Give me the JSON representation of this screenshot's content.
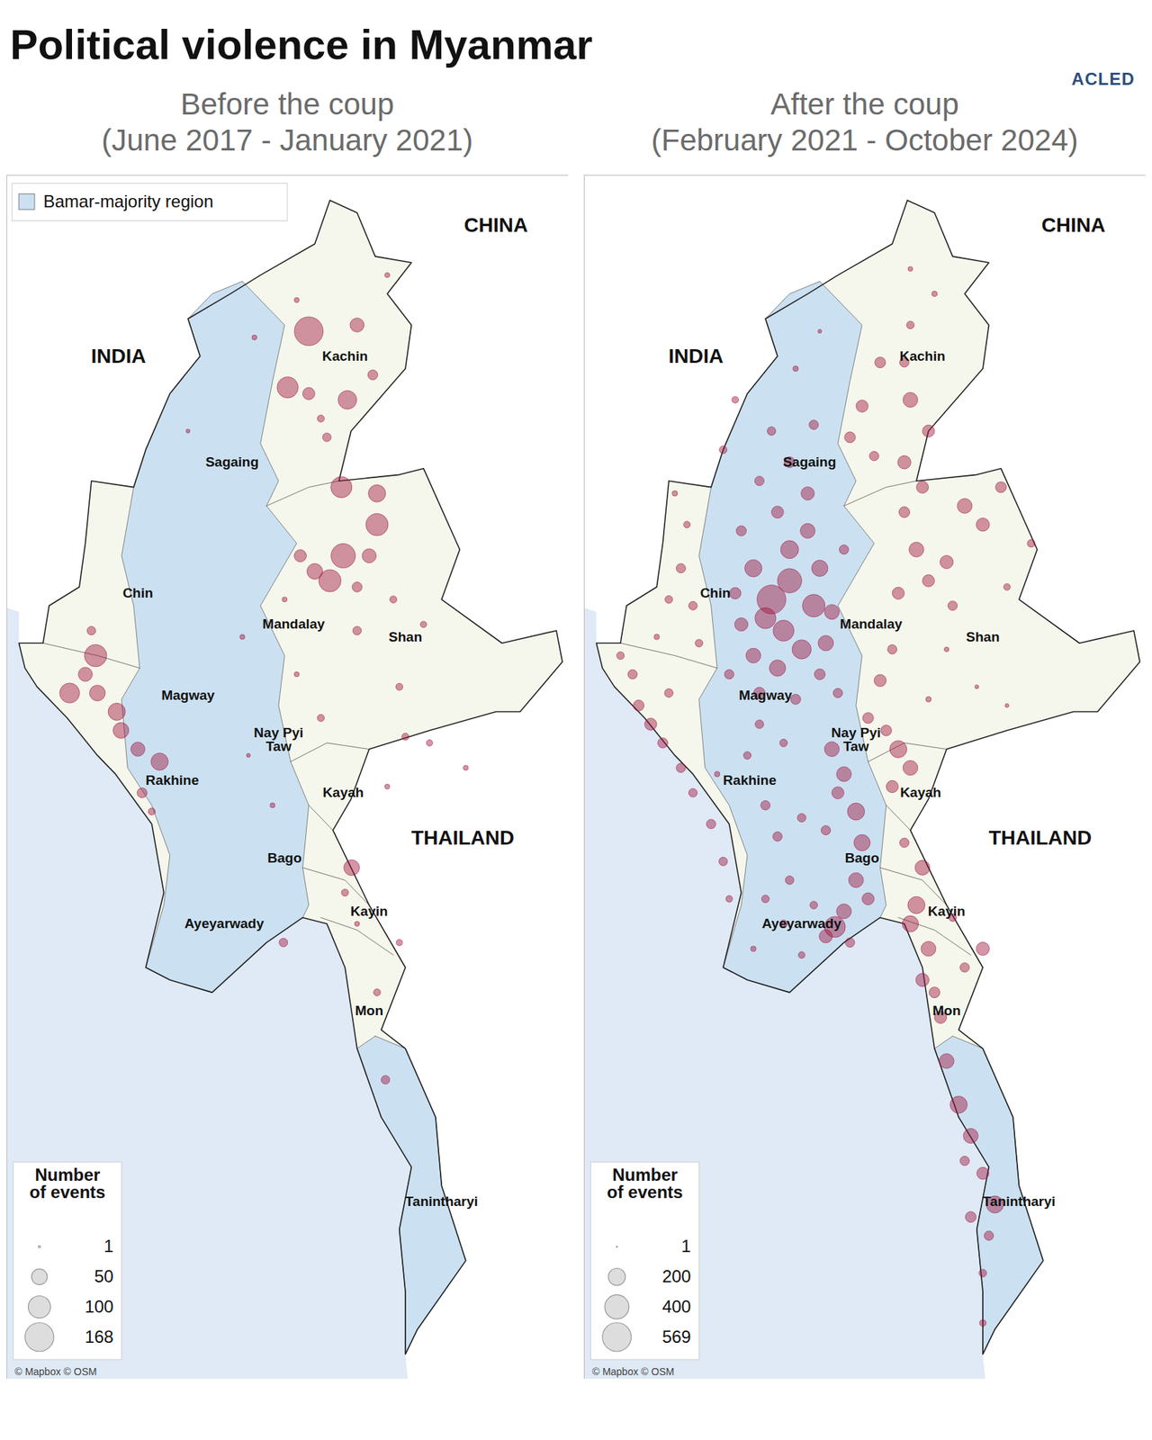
{
  "title": "Political violence in Myanmar",
  "logo": "ACLED",
  "region_labels": [
    "Kachin",
    "Sagaing",
    "Chin",
    "Mandalay",
    "Shan",
    "Magway",
    "Nay Pyi\nTaw",
    "Rakhine",
    "Kayah",
    "Bago",
    "Kayin",
    "Ayeyarwady",
    "Mon",
    "Tanintharyi"
  ],
  "country_labels": [
    "INDIA",
    "CHINA",
    "THAILAND"
  ],
  "chart_data": [
    {
      "type": "bubble_map",
      "title": "Before the coup",
      "subtitle": "(June 2017 - January 2021)",
      "area_legend": "Bamar-majority region",
      "source": "© Mapbox © OSM",
      "color": "#a0153e",
      "xlim": [
        92.0,
        101.3
      ],
      "ylim": [
        9.6,
        28.9
      ],
      "tick_labels": false,
      "size_legend": {
        "title": "Number\nof events",
        "values": [
          1,
          50,
          100,
          168
        ]
      },
      "events": [
        {
          "lon": 97.0,
          "lat": 26.4,
          "count": 168
        },
        {
          "lon": 97.8,
          "lat": 26.5,
          "count": 40
        },
        {
          "lon": 96.65,
          "lat": 25.5,
          "count": 90
        },
        {
          "lon": 97.64,
          "lat": 25.3,
          "count": 70
        },
        {
          "lon": 97.0,
          "lat": 25.4,
          "count": 30
        },
        {
          "lon": 97.54,
          "lat": 23.9,
          "count": 90
        },
        {
          "lon": 98.13,
          "lat": 23.8,
          "count": 60
        },
        {
          "lon": 98.13,
          "lat": 23.3,
          "count": 100
        },
        {
          "lon": 98.06,
          "lat": 25.7,
          "count": 20
        },
        {
          "lon": 97.3,
          "lat": 24.7,
          "count": 15
        },
        {
          "lon": 97.2,
          "lat": 25.0,
          "count": 10
        },
        {
          "lon": 96.8,
          "lat": 26.9,
          "count": 5
        },
        {
          "lon": 98.3,
          "lat": 27.3,
          "count": 5
        },
        {
          "lon": 97.57,
          "lat": 22.8,
          "count": 120
        },
        {
          "lon": 97.35,
          "lat": 22.4,
          "count": 100
        },
        {
          "lon": 97.1,
          "lat": 22.55,
          "count": 50
        },
        {
          "lon": 98.0,
          "lat": 22.8,
          "count": 40
        },
        {
          "lon": 96.86,
          "lat": 22.8,
          "count": 30
        },
        {
          "lon": 97.8,
          "lat": 22.3,
          "count": 20
        },
        {
          "lon": 98.4,
          "lat": 22.1,
          "count": 10
        },
        {
          "lon": 98.5,
          "lat": 20.7,
          "count": 10
        },
        {
          "lon": 98.9,
          "lat": 21.7,
          "count": 8
        },
        {
          "lon": 97.8,
          "lat": 21.6,
          "count": 15
        },
        {
          "lon": 98.6,
          "lat": 19.9,
          "count": 10
        },
        {
          "lon": 99.0,
          "lat": 19.8,
          "count": 8
        },
        {
          "lon": 99.6,
          "lat": 19.4,
          "count": 5
        },
        {
          "lon": 97.2,
          "lat": 20.2,
          "count": 10
        },
        {
          "lon": 98.3,
          "lat": 19.1,
          "count": 5
        },
        {
          "lon": 93.47,
          "lat": 21.2,
          "count": 100
        },
        {
          "lon": 93.04,
          "lat": 20.6,
          "count": 80
        },
        {
          "lon": 93.5,
          "lat": 20.6,
          "count": 50
        },
        {
          "lon": 93.82,
          "lat": 20.3,
          "count": 60
        },
        {
          "lon": 93.3,
          "lat": 20.9,
          "count": 40
        },
        {
          "lon": 93.89,
          "lat": 20.0,
          "count": 50
        },
        {
          "lon": 94.17,
          "lat": 19.7,
          "count": 40
        },
        {
          "lon": 94.53,
          "lat": 19.5,
          "count": 60
        },
        {
          "lon": 94.24,
          "lat": 19.0,
          "count": 20
        },
        {
          "lon": 94.4,
          "lat": 18.7,
          "count": 10
        },
        {
          "lon": 93.4,
          "lat": 21.6,
          "count": 15
        },
        {
          "lon": 97.71,
          "lat": 17.8,
          "count": 50
        },
        {
          "lon": 97.6,
          "lat": 17.4,
          "count": 10
        },
        {
          "lon": 98.13,
          "lat": 15.8,
          "count": 10
        },
        {
          "lon": 98.27,
          "lat": 14.4,
          "count": 15
        },
        {
          "lon": 98.5,
          "lat": 16.6,
          "count": 8
        },
        {
          "lon": 96.1,
          "lat": 26.3,
          "count": 5
        },
        {
          "lon": 96.6,
          "lat": 22.1,
          "count": 5
        },
        {
          "lon": 95.9,
          "lat": 21.5,
          "count": 5
        },
        {
          "lon": 96.8,
          "lat": 20.9,
          "count": 5
        },
        {
          "lon": 96.4,
          "lat": 18.8,
          "count": 5
        },
        {
          "lon": 96.58,
          "lat": 16.6,
          "count": 15
        },
        {
          "lon": 95.0,
          "lat": 24.8,
          "count": 3
        },
        {
          "lon": 96.0,
          "lat": 19.6,
          "count": 3
        },
        {
          "lon": 97.8,
          "lat": 16.9,
          "count": 5
        }
      ]
    },
    {
      "type": "bubble_map",
      "title": "After the coup",
      "subtitle": "(February 2021 - October 2024)",
      "source": "© Mapbox © OSM",
      "color": "#a0153e",
      "xlim": [
        92.0,
        101.3
      ],
      "ylim": [
        9.6,
        28.9
      ],
      "tick_labels": false,
      "size_legend": {
        "title": "Number\nof events",
        "values": [
          1,
          200,
          400,
          569
        ]
      },
      "events": [
        {
          "lon": 95.1,
          "lat": 22.1,
          "count": 569
        },
        {
          "lon": 95.4,
          "lat": 22.4,
          "count": 400
        },
        {
          "lon": 95.8,
          "lat": 22.0,
          "count": 350
        },
        {
          "lon": 95.3,
          "lat": 21.6,
          "count": 300
        },
        {
          "lon": 95.6,
          "lat": 21.3,
          "count": 250
        },
        {
          "lon": 95.0,
          "lat": 21.8,
          "count": 300
        },
        {
          "lon": 94.8,
          "lat": 22.6,
          "count": 200
        },
        {
          "lon": 95.4,
          "lat": 22.9,
          "count": 220
        },
        {
          "lon": 95.9,
          "lat": 22.6,
          "count": 180
        },
        {
          "lon": 96.1,
          "lat": 21.9,
          "count": 150
        },
        {
          "lon": 96.0,
          "lat": 21.4,
          "count": 160
        },
        {
          "lon": 95.2,
          "lat": 21.0,
          "count": 180
        },
        {
          "lon": 94.8,
          "lat": 21.2,
          "count": 150
        },
        {
          "lon": 94.6,
          "lat": 21.7,
          "count": 120
        },
        {
          "lon": 95.7,
          "lat": 23.2,
          "count": 150
        },
        {
          "lon": 95.2,
          "lat": 23.5,
          "count": 100
        },
        {
          "lon": 95.7,
          "lat": 23.8,
          "count": 120
        },
        {
          "lon": 95.4,
          "lat": 24.3,
          "count": 80
        },
        {
          "lon": 95.8,
          "lat": 24.9,
          "count": 60
        },
        {
          "lon": 95.1,
          "lat": 24.8,
          "count": 50
        },
        {
          "lon": 94.6,
          "lat": 23.2,
          "count": 70
        },
        {
          "lon": 94.5,
          "lat": 22.2,
          "count": 90
        },
        {
          "lon": 94.4,
          "lat": 20.9,
          "count": 60
        },
        {
          "lon": 94.9,
          "lat": 20.6,
          "count": 90
        },
        {
          "lon": 95.5,
          "lat": 20.5,
          "count": 70
        },
        {
          "lon": 95.9,
          "lat": 20.9,
          "count": 80
        },
        {
          "lon": 96.2,
          "lat": 20.6,
          "count": 60
        },
        {
          "lon": 94.9,
          "lat": 20.1,
          "count": 50
        },
        {
          "lon": 95.3,
          "lat": 19.8,
          "count": 40
        },
        {
          "lon": 94.7,
          "lat": 19.6,
          "count": 40
        },
        {
          "lon": 94.3,
          "lat": 24.5,
          "count": 40
        },
        {
          "lon": 94.5,
          "lat": 25.3,
          "count": 30
        },
        {
          "lon": 95.5,
          "lat": 25.8,
          "count": 20
        },
        {
          "lon": 95.9,
          "lat": 26.4,
          "count": 10
        },
        {
          "lon": 94.9,
          "lat": 24.0,
          "count": 60
        },
        {
          "lon": 96.3,
          "lat": 22.9,
          "count": 60
        },
        {
          "lon": 93.6,
          "lat": 22.6,
          "count": 60
        },
        {
          "lon": 93.8,
          "lat": 22.0,
          "count": 50
        },
        {
          "lon": 93.4,
          "lat": 22.1,
          "count": 40
        },
        {
          "lon": 93.7,
          "lat": 23.3,
          "count": 30
        },
        {
          "lon": 93.9,
          "lat": 21.4,
          "count": 40
        },
        {
          "lon": 93.2,
          "lat": 21.5,
          "count": 20
        },
        {
          "lon": 93.5,
          "lat": 23.8,
          "count": 20
        },
        {
          "lon": 92.9,
          "lat": 20.4,
          "count": 80
        },
        {
          "lon": 93.1,
          "lat": 20.1,
          "count": 100
        },
        {
          "lon": 92.8,
          "lat": 20.9,
          "count": 60
        },
        {
          "lon": 93.3,
          "lat": 19.8,
          "count": 70
        },
        {
          "lon": 93.6,
          "lat": 19.4,
          "count": 60
        },
        {
          "lon": 93.8,
          "lat": 19.0,
          "count": 50
        },
        {
          "lon": 94.1,
          "lat": 18.5,
          "count": 60
        },
        {
          "lon": 94.3,
          "lat": 17.9,
          "count": 50
        },
        {
          "lon": 94.4,
          "lat": 17.3,
          "count": 30
        },
        {
          "lon": 92.6,
          "lat": 21.2,
          "count": 40
        },
        {
          "lon": 93.4,
          "lat": 20.6,
          "count": 50
        },
        {
          "lon": 94.2,
          "lat": 19.3,
          "count": 20
        },
        {
          "lon": 95.0,
          "lat": 18.8,
          "count": 60
        },
        {
          "lon": 95.2,
          "lat": 18.3,
          "count": 60
        },
        {
          "lon": 95.6,
          "lat": 18.6,
          "count": 50
        },
        {
          "lon": 95.4,
          "lat": 17.6,
          "count": 50
        },
        {
          "lon": 95.0,
          "lat": 17.3,
          "count": 40
        },
        {
          "lon": 95.3,
          "lat": 16.9,
          "count": 40
        },
        {
          "lon": 95.6,
          "lat": 16.4,
          "count": 30
        },
        {
          "lon": 94.8,
          "lat": 16.5,
          "count": 20
        },
        {
          "lon": 95.8,
          "lat": 17.2,
          "count": 40
        },
        {
          "lon": 96.15,
          "lat": 16.85,
          "count": 300
        },
        {
          "lon": 96.3,
          "lat": 17.1,
          "count": 150
        },
        {
          "lon": 96.0,
          "lat": 16.7,
          "count": 120
        },
        {
          "lon": 96.4,
          "lat": 16.6,
          "count": 60
        },
        {
          "lon": 96.1,
          "lat": 19.7,
          "count": 150
        },
        {
          "lon": 96.3,
          "lat": 19.3,
          "count": 150
        },
        {
          "lon": 96.5,
          "lat": 18.7,
          "count": 200
        },
        {
          "lon": 96.6,
          "lat": 18.2,
          "count": 180
        },
        {
          "lon": 96.5,
          "lat": 17.6,
          "count": 150
        },
        {
          "lon": 96.2,
          "lat": 19.0,
          "count": 100
        },
        {
          "lon": 96.0,
          "lat": 18.4,
          "count": 60
        },
        {
          "lon": 96.7,
          "lat": 17.3,
          "count": 100
        },
        {
          "lon": 97.2,
          "lat": 19.7,
          "count": 200
        },
        {
          "lon": 97.4,
          "lat": 19.4,
          "count": 150
        },
        {
          "lon": 97.1,
          "lat": 19.1,
          "count": 100
        },
        {
          "lon": 97.0,
          "lat": 20.0,
          "count": 80
        },
        {
          "lon": 96.9,
          "lat": 20.8,
          "count": 100
        },
        {
          "lon": 97.1,
          "lat": 21.3,
          "count": 60
        },
        {
          "lon": 96.7,
          "lat": 20.2,
          "count": 80
        },
        {
          "lon": 97.7,
          "lat": 20.5,
          "count": 20
        },
        {
          "lon": 98.5,
          "lat": 20.7,
          "count": 10
        },
        {
          "lon": 99.0,
          "lat": 20.4,
          "count": 10
        },
        {
          "lon": 98.0,
          "lat": 21.3,
          "count": 15
        },
        {
          "lon": 97.5,
          "lat": 22.9,
          "count": 150
        },
        {
          "lon": 98.0,
          "lat": 22.7,
          "count": 120
        },
        {
          "lon": 97.7,
          "lat": 22.4,
          "count": 100
        },
        {
          "lon": 97.2,
          "lat": 22.2,
          "count": 100
        },
        {
          "lon": 97.3,
          "lat": 23.5,
          "count": 80
        },
        {
          "lon": 98.3,
          "lat": 23.6,
          "count": 150
        },
        {
          "lon": 98.6,
          "lat": 23.3,
          "count": 120
        },
        {
          "lon": 98.1,
          "lat": 22.0,
          "count": 60
        },
        {
          "lon": 99.4,
          "lat": 23.0,
          "count": 40
        },
        {
          "lon": 99.0,
          "lat": 22.3,
          "count": 30
        },
        {
          "lon": 98.9,
          "lat": 23.9,
          "count": 80
        },
        {
          "lon": 97.6,
          "lat": 23.9,
          "count": 100
        },
        {
          "lon": 97.4,
          "lat": 25.3,
          "count": 150
        },
        {
          "lon": 97.7,
          "lat": 24.8,
          "count": 100
        },
        {
          "lon": 97.3,
          "lat": 24.3,
          "count": 120
        },
        {
          "lon": 96.6,
          "lat": 25.2,
          "count": 100
        },
        {
          "lon": 96.9,
          "lat": 25.9,
          "count": 80
        },
        {
          "lon": 97.3,
          "lat": 25.9,
          "count": 60
        },
        {
          "lon": 96.4,
          "lat": 24.7,
          "count": 80
        },
        {
          "lon": 97.4,
          "lat": 26.5,
          "count": 40
        },
        {
          "lon": 97.8,
          "lat": 27.0,
          "count": 20
        },
        {
          "lon": 97.4,
          "lat": 27.4,
          "count": 15
        },
        {
          "lon": 96.8,
          "lat": 24.4,
          "count": 60
        },
        {
          "lon": 97.6,
          "lat": 17.8,
          "count": 150
        },
        {
          "lon": 97.5,
          "lat": 17.2,
          "count": 200
        },
        {
          "lon": 97.4,
          "lat": 16.9,
          "count": 180
        },
        {
          "lon": 97.7,
          "lat": 16.5,
          "count": 150
        },
        {
          "lon": 98.6,
          "lat": 16.5,
          "count": 120
        },
        {
          "lon": 98.3,
          "lat": 16.2,
          "count": 60
        },
        {
          "lon": 97.6,
          "lat": 16.0,
          "count": 120
        },
        {
          "lon": 97.9,
          "lat": 15.4,
          "count": 100
        },
        {
          "lon": 97.8,
          "lat": 15.8,
          "count": 80
        },
        {
          "lon": 98.1,
          "lat": 17.0,
          "count": 40
        },
        {
          "lon": 97.3,
          "lat": 18.2,
          "count": 60
        },
        {
          "lon": 98.0,
          "lat": 14.7,
          "count": 150
        },
        {
          "lon": 98.2,
          "lat": 14.0,
          "count": 200
        },
        {
          "lon": 98.4,
          "lat": 13.5,
          "count": 150
        },
        {
          "lon": 98.6,
          "lat": 12.9,
          "count": 100
        },
        {
          "lon": 98.8,
          "lat": 12.4,
          "count": 200
        },
        {
          "lon": 98.7,
          "lat": 11.9,
          "count": 60
        },
        {
          "lon": 98.6,
          "lat": 11.3,
          "count": 40
        },
        {
          "lon": 98.6,
          "lat": 10.5,
          "count": 30
        },
        {
          "lon": 98.4,
          "lat": 12.2,
          "count": 80
        },
        {
          "lon": 98.3,
          "lat": 13.1,
          "count": 60
        }
      ]
    }
  ]
}
